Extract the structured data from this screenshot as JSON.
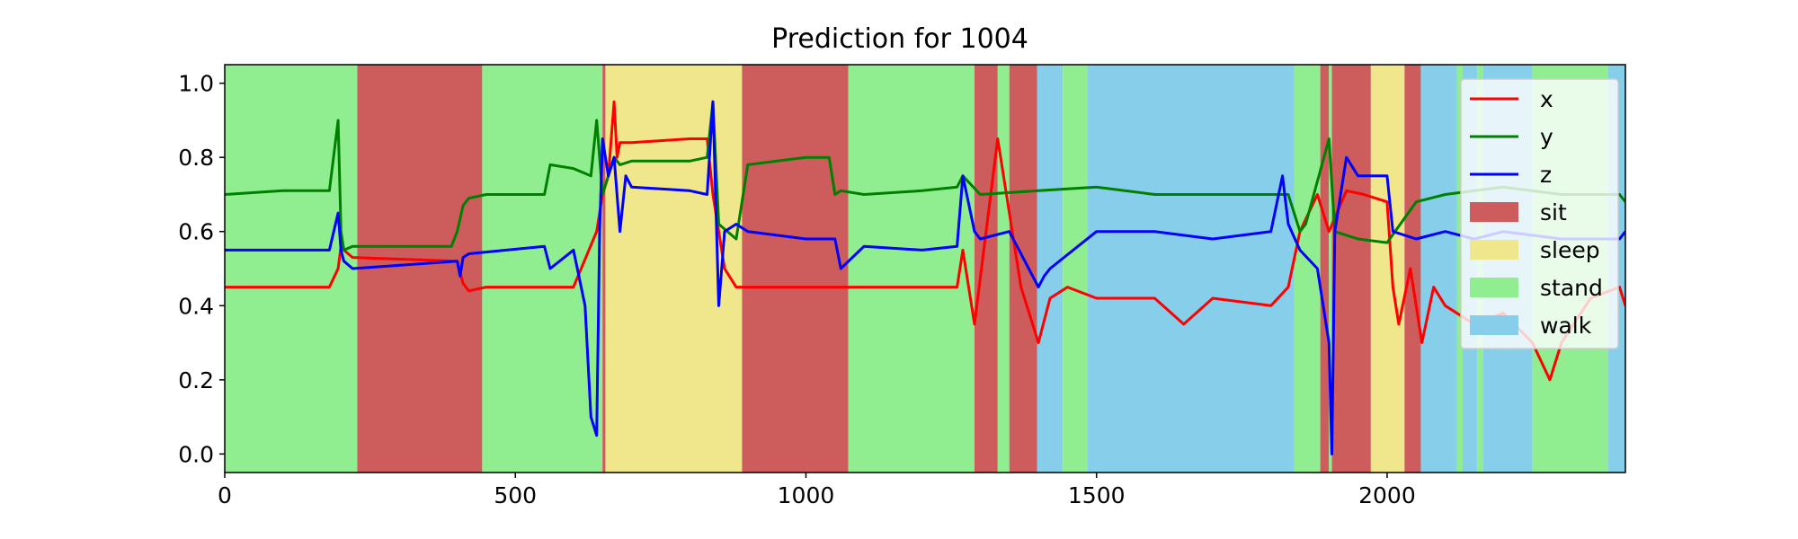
{
  "chart_data": {
    "type": "line",
    "title": "Prediction for 1004",
    "xlabel": "",
    "ylabel": "",
    "xlim": [
      0,
      2410
    ],
    "ylim": [
      -0.05,
      1.05
    ],
    "x_ticks": [
      0,
      500,
      1000,
      1500,
      2000
    ],
    "y_ticks": [
      0.0,
      0.2,
      0.4,
      0.6,
      0.8,
      1.0
    ],
    "x_tick_labels": [
      "0",
      "500",
      "1000",
      "1500",
      "2000"
    ],
    "y_tick_labels": [
      "0.0",
      "0.2",
      "0.4",
      "0.6",
      "0.8",
      "1.0"
    ],
    "grid": false,
    "legend_position": "top-right",
    "series": [
      {
        "name": "x",
        "color": "#ff0000",
        "x": [
          0,
          180,
          195,
          200,
          205,
          220,
          400,
          410,
          420,
          450,
          600,
          640,
          650,
          660,
          670,
          675,
          680,
          700,
          800,
          830,
          840,
          850,
          860,
          880,
          900,
          1000,
          1050,
          1100,
          1200,
          1260,
          1270,
          1290,
          1310,
          1330,
          1370,
          1400,
          1420,
          1450,
          1500,
          1600,
          1650,
          1700,
          1800,
          1830,
          1850,
          1880,
          1900,
          1930,
          1960,
          2000,
          2010,
          2020,
          2040,
          2060,
          2080,
          2100,
          2150,
          2200,
          2250,
          2280,
          2300,
          2350,
          2400,
          2410
        ],
        "y": [
          0.45,
          0.45,
          0.5,
          0.56,
          0.55,
          0.53,
          0.52,
          0.46,
          0.44,
          0.45,
          0.45,
          0.6,
          0.7,
          0.75,
          0.95,
          0.8,
          0.84,
          0.84,
          0.85,
          0.85,
          0.7,
          0.6,
          0.5,
          0.45,
          0.45,
          0.45,
          0.45,
          0.45,
          0.45,
          0.45,
          0.55,
          0.35,
          0.6,
          0.85,
          0.45,
          0.3,
          0.42,
          0.45,
          0.42,
          0.42,
          0.35,
          0.42,
          0.4,
          0.45,
          0.6,
          0.7,
          0.6,
          0.71,
          0.7,
          0.68,
          0.45,
          0.35,
          0.5,
          0.3,
          0.45,
          0.4,
          0.35,
          0.38,
          0.3,
          0.2,
          0.3,
          0.42,
          0.45,
          0.4
        ]
      },
      {
        "name": "y",
        "color": "#008000",
        "x": [
          0,
          100,
          180,
          195,
          200,
          205,
          220,
          390,
          400,
          410,
          420,
          450,
          550,
          560,
          600,
          630,
          640,
          650,
          660,
          670,
          680,
          700,
          800,
          830,
          840,
          850,
          880,
          900,
          1000,
          1040,
          1050,
          1060,
          1100,
          1200,
          1260,
          1270,
          1300,
          1400,
          1500,
          1600,
          1700,
          1800,
          1830,
          1850,
          1860,
          1900,
          1910,
          1930,
          1950,
          2000,
          2050,
          2100,
          2200,
          2300,
          2400,
          2410
        ],
        "y": [
          0.7,
          0.71,
          0.71,
          0.9,
          0.6,
          0.55,
          0.56,
          0.56,
          0.6,
          0.67,
          0.69,
          0.7,
          0.7,
          0.78,
          0.77,
          0.75,
          0.9,
          0.7,
          0.75,
          0.8,
          0.78,
          0.79,
          0.79,
          0.8,
          0.95,
          0.62,
          0.58,
          0.78,
          0.8,
          0.8,
          0.7,
          0.71,
          0.7,
          0.71,
          0.72,
          0.75,
          0.7,
          0.71,
          0.72,
          0.7,
          0.7,
          0.7,
          0.7,
          0.6,
          0.62,
          0.85,
          0.6,
          0.59,
          0.58,
          0.57,
          0.68,
          0.7,
          0.72,
          0.7,
          0.7,
          0.68
        ]
      },
      {
        "name": "z",
        "color": "#0000ff",
        "x": [
          0,
          100,
          180,
          195,
          200,
          205,
          220,
          400,
          405,
          410,
          420,
          550,
          560,
          600,
          620,
          630,
          640,
          645,
          650,
          660,
          670,
          680,
          690,
          700,
          800,
          830,
          840,
          850,
          860,
          880,
          900,
          1000,
          1050,
          1060,
          1100,
          1200,
          1260,
          1270,
          1290,
          1300,
          1350,
          1400,
          1410,
          1420,
          1500,
          1600,
          1700,
          1800,
          1820,
          1830,
          1850,
          1880,
          1900,
          1905,
          1910,
          1930,
          1950,
          2000,
          2010,
          2050,
          2100,
          2150,
          2200,
          2300,
          2400,
          2410
        ],
        "y": [
          0.55,
          0.55,
          0.55,
          0.65,
          0.55,
          0.52,
          0.5,
          0.52,
          0.48,
          0.53,
          0.54,
          0.56,
          0.5,
          0.55,
          0.4,
          0.1,
          0.05,
          0.6,
          0.85,
          0.75,
          0.8,
          0.6,
          0.75,
          0.72,
          0.71,
          0.7,
          0.95,
          0.4,
          0.6,
          0.62,
          0.6,
          0.58,
          0.58,
          0.5,
          0.56,
          0.55,
          0.56,
          0.75,
          0.6,
          0.58,
          0.6,
          0.45,
          0.48,
          0.5,
          0.6,
          0.6,
          0.58,
          0.6,
          0.75,
          0.62,
          0.55,
          0.5,
          0.3,
          0.0,
          0.6,
          0.8,
          0.75,
          0.75,
          0.6,
          0.58,
          0.6,
          0.58,
          0.6,
          0.58,
          0.58,
          0.6
        ]
      }
    ],
    "regions": [
      {
        "label": "stand",
        "start": 0,
        "end": 228
      },
      {
        "label": "sit",
        "start": 228,
        "end": 443
      },
      {
        "label": "stand",
        "start": 443,
        "end": 650
      },
      {
        "label": "sit",
        "start": 650,
        "end": 655
      },
      {
        "label": "sleep",
        "start": 655,
        "end": 890
      },
      {
        "label": "sit",
        "start": 890,
        "end": 1073
      },
      {
        "label": "stand",
        "start": 1073,
        "end": 1290
      },
      {
        "label": "sit",
        "start": 1290,
        "end": 1330
      },
      {
        "label": "stand",
        "start": 1330,
        "end": 1350
      },
      {
        "label": "sit",
        "start": 1350,
        "end": 1398
      },
      {
        "label": "walk",
        "start": 1398,
        "end": 1442
      },
      {
        "label": "stand",
        "start": 1442,
        "end": 1485
      },
      {
        "label": "walk",
        "start": 1485,
        "end": 1840
      },
      {
        "label": "stand",
        "start": 1840,
        "end": 1885
      },
      {
        "label": "sit",
        "start": 1885,
        "end": 1900
      },
      {
        "label": "stand",
        "start": 1900,
        "end": 1905
      },
      {
        "label": "sit",
        "start": 1905,
        "end": 1972
      },
      {
        "label": "sleep",
        "start": 1972,
        "end": 2030
      },
      {
        "label": "sit",
        "start": 2030,
        "end": 2058
      },
      {
        "label": "walk",
        "start": 2058,
        "end": 2120
      },
      {
        "label": "stand",
        "start": 2120,
        "end": 2130
      },
      {
        "label": "walk",
        "start": 2130,
        "end": 2155
      },
      {
        "label": "stand",
        "start": 2155,
        "end": 2165
      },
      {
        "label": "walk",
        "start": 2165,
        "end": 2250
      },
      {
        "label": "stand",
        "start": 2250,
        "end": 2380
      },
      {
        "label": "walk",
        "start": 2380,
        "end": 2410
      }
    ],
    "region_colors": {
      "sit": "#cd5c5c",
      "sleep": "#f0e68c",
      "stand": "#90ee90",
      "walk": "#87ceeb"
    },
    "legend": [
      {
        "label": "x",
        "kind": "line",
        "color": "#ff0000"
      },
      {
        "label": "y",
        "kind": "line",
        "color": "#008000"
      },
      {
        "label": "z",
        "kind": "line",
        "color": "#0000ff"
      },
      {
        "label": "sit",
        "kind": "patch",
        "color": "#cd5c5c"
      },
      {
        "label": "sleep",
        "kind": "patch",
        "color": "#f0e68c"
      },
      {
        "label": "stand",
        "kind": "patch",
        "color": "#90ee90"
      },
      {
        "label": "walk",
        "kind": "patch",
        "color": "#87ceeb"
      }
    ]
  }
}
